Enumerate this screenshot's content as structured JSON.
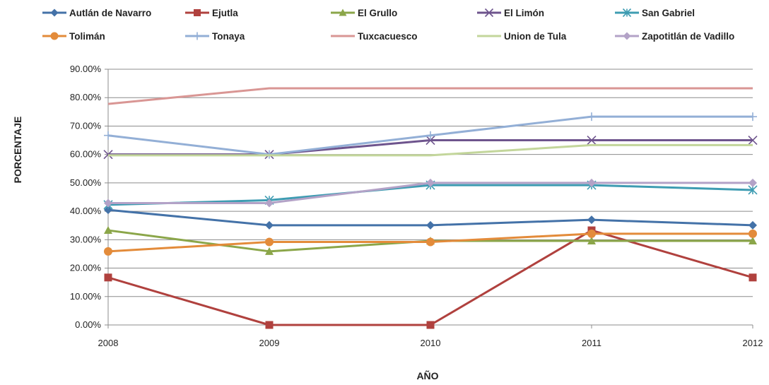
{
  "chart_data": {
    "type": "line",
    "title": "",
    "xlabel": "AÑO",
    "ylabel": "PORCENTAJE",
    "categories": [
      "2008",
      "2009",
      "2010",
      "2011",
      "2012"
    ],
    "ylim": [
      0,
      90
    ],
    "yticks": [
      0,
      10,
      20,
      30,
      40,
      50,
      60,
      70,
      80,
      90
    ],
    "ytick_labels": [
      "0.00%",
      "10.00%",
      "20.00%",
      "30.00%",
      "40.00%",
      "50.00%",
      "60.00%",
      "70.00%",
      "80.00%",
      "90.00%"
    ],
    "grid": "horizontal",
    "legend_position": "top",
    "series": [
      {
        "name": "Autlán de Navarro",
        "color": "#4472A8",
        "marker": "diamond",
        "values": [
          40.5,
          35.1,
          35.1,
          37.0,
          35.1
        ]
      },
      {
        "name": "Ejutla",
        "color": "#B0413E",
        "marker": "square",
        "values": [
          16.7,
          0.0,
          0.0,
          33.3,
          16.7
        ]
      },
      {
        "name": "El Grullo",
        "color": "#8BA649",
        "marker": "triangle",
        "values": [
          33.3,
          25.9,
          29.6,
          29.6,
          29.6
        ]
      },
      {
        "name": "El Limón",
        "color": "#6E548D",
        "marker": "x",
        "values": [
          60.0,
          60.0,
          65.0,
          65.0,
          65.0
        ]
      },
      {
        "name": "San Gabriel",
        "color": "#3E9CB2",
        "marker": "star",
        "values": [
          42.3,
          43.9,
          49.2,
          49.2,
          47.5
        ]
      },
      {
        "name": "Tolimán",
        "color": "#E38B3A",
        "marker": "circle",
        "values": [
          25.9,
          29.2,
          29.2,
          32.1,
          32.1
        ]
      },
      {
        "name": "Tonaya",
        "color": "#93AFD6",
        "marker": "plus",
        "values": [
          66.7,
          60.0,
          66.7,
          73.3,
          73.3
        ]
      },
      {
        "name": "Tuxcacuesco",
        "color": "#D99694",
        "marker": "none",
        "values": [
          77.8,
          83.3,
          83.3,
          83.3,
          83.3
        ]
      },
      {
        "name": "Union de Tula",
        "color": "#C3D69B",
        "marker": "none",
        "values": [
          59.7,
          59.7,
          59.7,
          63.3,
          63.3
        ]
      },
      {
        "name": "Zapotitlán de Vadillo",
        "color": "#B3A2C7",
        "marker": "diamond",
        "values": [
          42.9,
          42.9,
          50.0,
          50.0,
          50.0
        ]
      }
    ]
  }
}
